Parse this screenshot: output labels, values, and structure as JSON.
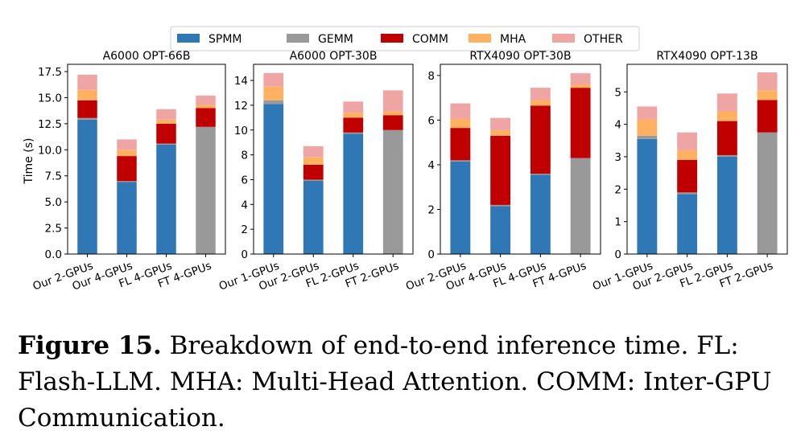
{
  "legend": [
    {
      "name": "SPMM",
      "color": "#2f77b5"
    },
    {
      "name": "GEMM",
      "color": "#999999"
    },
    {
      "name": "COMM",
      "color": "#c00000"
    },
    {
      "name": "MHA",
      "color": "#ffb060"
    },
    {
      "name": "OTHER",
      "color": "#f0a5a5"
    }
  ],
  "ylabel": "Time (s)",
  "caption": {
    "label": "Figure 15.",
    "text": " Breakdown of end-to-end inference time. FL: Flash-LLM. MHA: Multi-Head Attention. COMM: Inter-GPU Communication."
  },
  "chart_data": [
    {
      "type": "bar",
      "stacked": true,
      "title": "A6000 OPT-66B",
      "categories": [
        "Our 2-GPUs",
        "Our 4-GPUs",
        "FL 4-GPUs",
        "FT 4-GPUs"
      ],
      "ylim": [
        0,
        18.2
      ],
      "yticks": [
        0.0,
        2.5,
        5.0,
        7.5,
        10.0,
        12.5,
        15.0,
        17.5
      ],
      "tick_labels": [
        "0.0",
        "2.5",
        "5.0",
        "7.5",
        "10.0",
        "12.5",
        "15.0",
        "17.5"
      ],
      "series": [
        {
          "name": "SPMM",
          "values": [
            12.9,
            6.9,
            10.5,
            0
          ]
        },
        {
          "name": "GEMM",
          "values": [
            0.15,
            0.1,
            0.1,
            12.2
          ]
        },
        {
          "name": "COMM",
          "values": [
            1.7,
            2.4,
            1.9,
            1.8
          ]
        },
        {
          "name": "MHA",
          "values": [
            1.0,
            0.6,
            0.4,
            0.3
          ]
        },
        {
          "name": "OTHER",
          "values": [
            1.45,
            1.0,
            1.0,
            0.9
          ]
        }
      ]
    },
    {
      "type": "bar",
      "stacked": true,
      "title": "A6000 OPT-30B",
      "categories": [
        "Our 1-GPUs",
        "Our 2-GPUs",
        "FL 2-GPUs",
        "FT 2-GPUs"
      ],
      "ylim": [
        0,
        15.3
      ],
      "yticks": [
        0,
        2,
        4,
        6,
        8,
        10,
        12,
        14
      ],
      "tick_labels": [
        "0",
        "2",
        "4",
        "6",
        "8",
        "10",
        "12",
        "14"
      ],
      "series": [
        {
          "name": "SPMM",
          "values": [
            12.1,
            5.9,
            9.7,
            0
          ]
        },
        {
          "name": "GEMM",
          "values": [
            0.3,
            0.1,
            0.1,
            10.0
          ]
        },
        {
          "name": "COMM",
          "values": [
            0,
            1.2,
            1.2,
            1.2
          ]
        },
        {
          "name": "MHA",
          "values": [
            1.1,
            0.6,
            0.4,
            0.3
          ]
        },
        {
          "name": "OTHER",
          "values": [
            1.1,
            0.9,
            0.9,
            1.7
          ]
        }
      ]
    },
    {
      "type": "bar",
      "stacked": true,
      "title": "RTX4090 OPT-30B",
      "categories": [
        "Our 2-GPUs",
        "Our 4-GPUs",
        "FL 4-GPUs",
        "FT 4-GPUs"
      ],
      "ylim": [
        0,
        8.5
      ],
      "yticks": [
        0,
        2,
        4,
        6,
        8
      ],
      "tick_labels": [
        "0",
        "2",
        "4",
        "6",
        "8"
      ],
      "series": [
        {
          "name": "SPMM",
          "values": [
            4.15,
            2.15,
            3.55,
            0
          ]
        },
        {
          "name": "GEMM",
          "values": [
            0.05,
            0.05,
            0.05,
            4.3
          ]
        },
        {
          "name": "COMM",
          "values": [
            1.45,
            3.1,
            3.05,
            3.15
          ]
        },
        {
          "name": "MHA",
          "values": [
            0.4,
            0.25,
            0.25,
            0.15
          ]
        },
        {
          "name": "OTHER",
          "values": [
            0.7,
            0.55,
            0.55,
            0.5
          ]
        }
      ]
    },
    {
      "type": "bar",
      "stacked": true,
      "title": "RTX4090 OPT-13B",
      "categories": [
        "Our 1-GPUs",
        "Our 2-GPUs",
        "FL 2-GPUs",
        "FT 2-GPUs"
      ],
      "ylim": [
        0,
        5.85
      ],
      "yticks": [
        0,
        1,
        2,
        3,
        4,
        5
      ],
      "tick_labels": [
        "0",
        "1",
        "2",
        "3",
        "4",
        "5"
      ],
      "series": [
        {
          "name": "SPMM",
          "values": [
            3.55,
            1.85,
            3.0,
            0
          ]
        },
        {
          "name": "GEMM",
          "values": [
            0.1,
            0.05,
            0.05,
            3.75
          ]
        },
        {
          "name": "COMM",
          "values": [
            0,
            1.0,
            1.05,
            1.0
          ]
        },
        {
          "name": "MHA",
          "values": [
            0.5,
            0.3,
            0.3,
            0.3
          ]
        },
        {
          "name": "OTHER",
          "values": [
            0.4,
            0.55,
            0.55,
            0.55
          ]
        }
      ]
    }
  ]
}
